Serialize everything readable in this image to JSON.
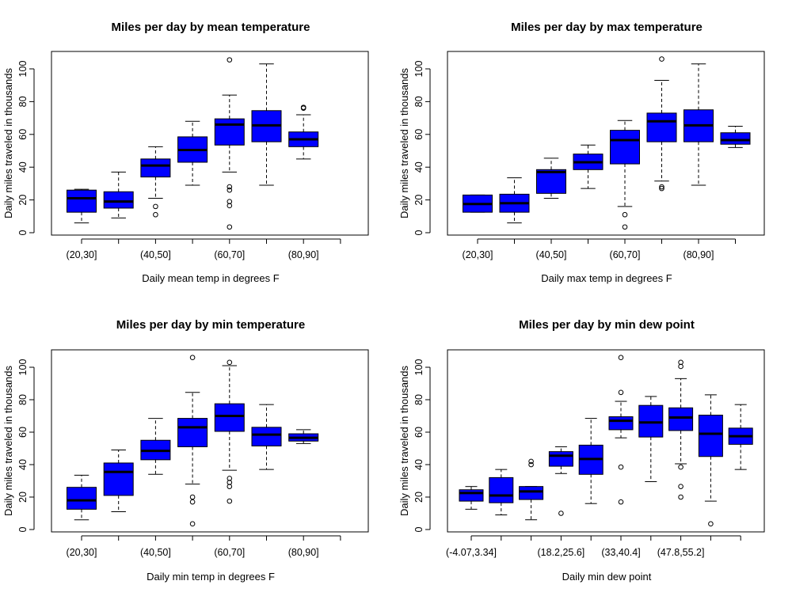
{
  "chart_data": [
    {
      "type": "box",
      "title": "Miles per day by mean temperature",
      "xlabel": "Daily mean temp in degrees F",
      "ylabel": "Daily miles traveled in thousands",
      "ylim": [
        0,
        110
      ],
      "yticks": [
        0,
        20,
        40,
        60,
        80,
        100
      ],
      "n_slots": 8,
      "xtick_labels": [
        "(20,30]",
        "",
        "(40,50]",
        "",
        "(60,70]",
        "",
        "(80,90]",
        ""
      ],
      "boxes": [
        {
          "lw": 6,
          "q1": 12.5,
          "med": 21,
          "q3": 26,
          "uw": 26.5,
          "out": []
        },
        {
          "lw": 9,
          "q1": 15,
          "med": 19,
          "q3": 25,
          "uw": 37,
          "out": []
        },
        {
          "lw": 21,
          "q1": 34,
          "med": 41,
          "q3": 45,
          "uw": 52.5,
          "out": [
            16,
            11
          ]
        },
        {
          "lw": 29,
          "q1": 43,
          "med": 50.5,
          "q3": 58.5,
          "uw": 68,
          "out": []
        },
        {
          "lw": 37,
          "q1": 53.5,
          "med": 66,
          "q3": 69.5,
          "uw": 84,
          "out": [
            105.5,
            28,
            26,
            19,
            16.5,
            3.5
          ]
        },
        {
          "lw": 29,
          "q1": 55.5,
          "med": 65.5,
          "q3": 74.5,
          "uw": 103,
          "out": []
        },
        {
          "lw": 45,
          "q1": 52.5,
          "med": 57,
          "q3": 61.5,
          "uw": 72,
          "out": [
            76.5,
            76
          ]
        }
      ]
    },
    {
      "type": "box",
      "title": "Miles per day by max temperature",
      "xlabel": "Daily max temp in degrees F",
      "ylabel": "Daily miles traveled in thousands",
      "ylim": [
        0,
        110
      ],
      "yticks": [
        0,
        20,
        40,
        60,
        80,
        100
      ],
      "n_slots": 8,
      "xtick_labels": [
        "(20,30]",
        "",
        "(40,50]",
        "",
        "(60,70]",
        "",
        "(80,90]",
        ""
      ],
      "boxes": [
        {
          "lw": 12.5,
          "q1": 12.5,
          "med": 17.5,
          "q3": 23,
          "uw": 23,
          "out": []
        },
        {
          "lw": 6,
          "q1": 12.5,
          "med": 18,
          "q3": 23.5,
          "uw": 33.5,
          "out": []
        },
        {
          "lw": 21,
          "q1": 24,
          "med": 37,
          "q3": 38.5,
          "uw": 45.5,
          "out": []
        },
        {
          "lw": 27,
          "q1": 38.5,
          "med": 43,
          "q3": 48,
          "uw": 53.5,
          "out": []
        },
        {
          "lw": 16,
          "q1": 42,
          "med": 56.5,
          "q3": 62.5,
          "uw": 68.5,
          "out": [
            11,
            3.5
          ]
        },
        {
          "lw": 31.5,
          "q1": 55.5,
          "med": 68,
          "q3": 73,
          "uw": 93,
          "out": [
            106,
            28,
            27
          ]
        },
        {
          "lw": 29,
          "q1": 55.5,
          "med": 65.5,
          "q3": 75,
          "uw": 103,
          "out": []
        },
        {
          "lw": 52,
          "q1": 54,
          "med": 56.5,
          "q3": 61,
          "uw": 65,
          "out": []
        }
      ]
    },
    {
      "type": "box",
      "title": "Miles per day by min temperature",
      "xlabel": "Daily min temp in degrees F",
      "ylabel": "Daily miles traveled in thousands",
      "ylim": [
        0,
        110
      ],
      "yticks": [
        0,
        20,
        40,
        60,
        80,
        100
      ],
      "n_slots": 8,
      "xtick_labels": [
        "(20,30]",
        "",
        "(40,50]",
        "",
        "(60,70]",
        "",
        "(80,90]",
        ""
      ],
      "boxes": [
        {
          "lw": 6,
          "q1": 12.5,
          "med": 18,
          "q3": 26,
          "uw": 33.5,
          "out": []
        },
        {
          "lw": 11,
          "q1": 21,
          "med": 35.5,
          "q3": 41,
          "uw": 49,
          "out": []
        },
        {
          "lw": 34,
          "q1": 43,
          "med": 48.5,
          "q3": 55,
          "uw": 68.5,
          "out": []
        },
        {
          "lw": 28,
          "q1": 51,
          "med": 63,
          "q3": 68.5,
          "uw": 84.5,
          "out": [
            106,
            20,
            17,
            3.5
          ]
        },
        {
          "lw": 36.5,
          "q1": 60.5,
          "med": 70,
          "q3": 77.5,
          "uw": 101,
          "out": [
            103,
            31.5,
            29,
            26.5,
            17.5
          ]
        },
        {
          "lw": 37,
          "q1": 51.5,
          "med": 58.5,
          "q3": 63,
          "uw": 77,
          "out": []
        },
        {
          "lw": 53,
          "q1": 54.5,
          "med": 56.5,
          "q3": 59,
          "uw": 61.5,
          "out": []
        }
      ]
    },
    {
      "type": "box",
      "title": "Miles per day by min dew point",
      "xlabel": "Daily min dew point",
      "ylabel": "Daily miles traveled in thousands",
      "ylim": [
        0,
        110
      ],
      "yticks": [
        0,
        20,
        40,
        60,
        80,
        100
      ],
      "n_slots": 10,
      "xtick_labels": [
        "(-4.07,3.34]",
        "",
        "",
        "(18.2,25.6]",
        "",
        "(33,40.4]",
        "",
        "(47.8,55.2]",
        "",
        ""
      ],
      "boxes": [
        {
          "lw": 12.5,
          "q1": 17.5,
          "med": 22.5,
          "q3": 24.5,
          "uw": 26.5,
          "out": []
        },
        {
          "lw": 9,
          "q1": 16.5,
          "med": 21,
          "q3": 32,
          "uw": 37,
          "out": []
        },
        {
          "lw": 6,
          "q1": 18.5,
          "med": 23.5,
          "q3": 26.5,
          "uw": 26.5,
          "out": [
            42,
            40
          ]
        },
        {
          "lw": 34.5,
          "q1": 39,
          "med": 45.5,
          "q3": 48,
          "uw": 51,
          "out": [
            10
          ]
        },
        {
          "lw": 16,
          "q1": 34,
          "med": 43.5,
          "q3": 52,
          "uw": 68.5,
          "out": []
        },
        {
          "lw": 56.5,
          "q1": 61.5,
          "med": 67,
          "q3": 69.5,
          "uw": 79,
          "out": [
            106,
            84.5,
            38.5,
            17
          ]
        },
        {
          "lw": 29.5,
          "q1": 57,
          "med": 66,
          "q3": 76.5,
          "uw": 82,
          "out": []
        },
        {
          "lw": 40.5,
          "q1": 61,
          "med": 69,
          "q3": 75,
          "uw": 93,
          "out": [
            103,
            100.5,
            38.5,
            26.5,
            20
          ]
        },
        {
          "lw": 17.5,
          "q1": 45,
          "med": 59,
          "q3": 70.5,
          "uw": 83,
          "out": [
            3.5
          ]
        },
        {
          "lw": 37,
          "q1": 52.5,
          "med": 57.5,
          "q3": 62.5,
          "uw": 77,
          "out": []
        }
      ]
    }
  ],
  "colors": {
    "box_fill": "#0000ff",
    "line": "#000000",
    "outlier": "#000000"
  }
}
